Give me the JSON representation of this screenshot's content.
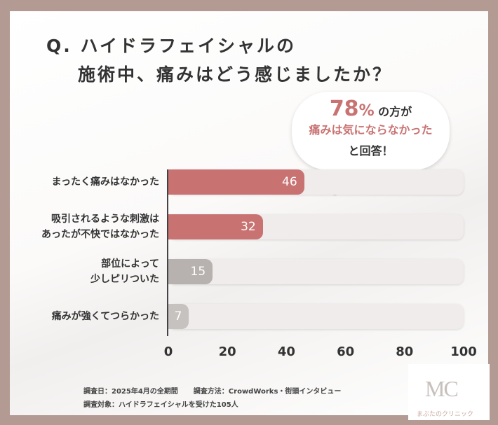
{
  "title": {
    "line1": "Q. ハイドラフェイシャルの",
    "line2": "施術中、痛みはどう感じましたか？"
  },
  "callout": {
    "percent": "78",
    "percent_sign": "%",
    "text1": " の方が",
    "text2": "痛みは気にならなかった",
    "text3": "と回答！"
  },
  "chart_data": {
    "type": "bar",
    "orientation": "horizontal",
    "categories": [
      [
        "まったく痛みはなかった"
      ],
      [
        "吸引されるような刺激は",
        "あったが不快ではなかった"
      ],
      [
        "部位によって",
        "少しピリついた"
      ],
      [
        "痛みが強くてつらかった"
      ]
    ],
    "values": [
      46,
      32,
      15,
      7
    ],
    "colors": [
      "#c97272",
      "#c97272",
      "#b7b2b0",
      "#c6c2c0"
    ],
    "xlim": [
      0,
      100
    ],
    "xticks": [
      "0",
      "20",
      "40",
      "60",
      "80",
      "100"
    ]
  },
  "footer": {
    "line1_a": "調査日：2025年4月の全期間",
    "line1_b": "調査方法：CrowdWorks・街頭インタビュー",
    "line2": "調査対象：ハイドラフェイシャルを受けた105人"
  },
  "logo": {
    "mark": "MC",
    "name": "まぶたのクリニック"
  }
}
